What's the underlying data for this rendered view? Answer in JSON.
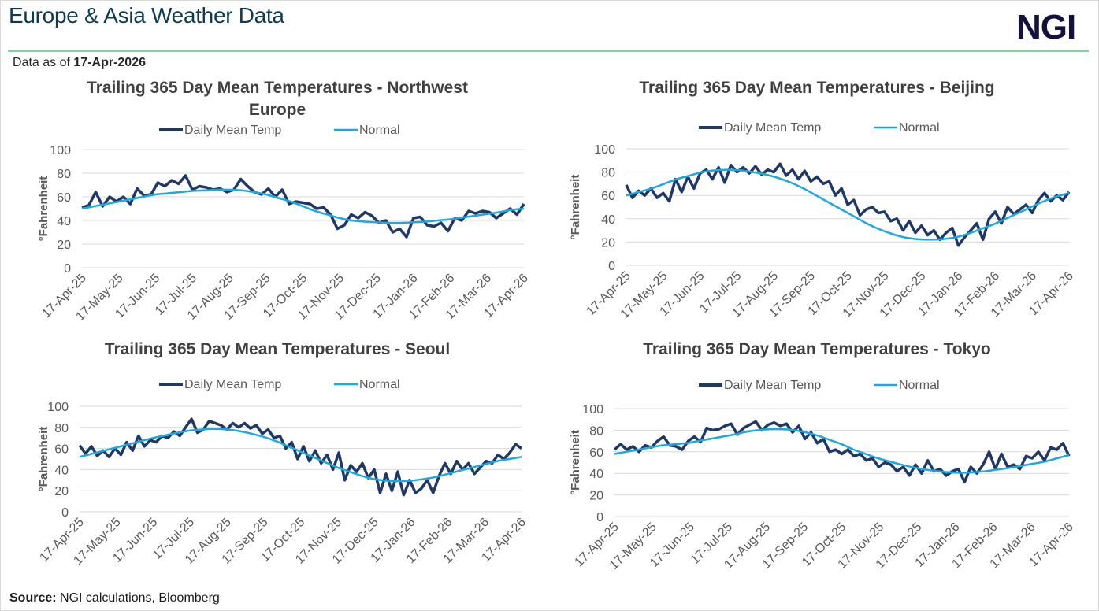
{
  "header": {
    "title": "Europe & Asia Weather Data",
    "logo": "NGI",
    "as_of_label": "Data as of",
    "as_of_date": "17-Apr-2026"
  },
  "footer": {
    "source_label": "Source:",
    "source_text": "NGI calculations, Bloomberg"
  },
  "colors": {
    "daily": "#1f3864",
    "normal": "#1fa8e0",
    "rule": "#7fd1a4",
    "title": "#0e3b4f",
    "logo": "#13123f"
  },
  "chart_data": [
    {
      "type": "line",
      "title_lines": [
        "Trailing 365 Day Mean Temperatures - Northwest",
        "Europe"
      ],
      "ylabel": "°Fahrenheit",
      "ylim": [
        0,
        100
      ],
      "yticks": [
        "0",
        "20",
        "40",
        "60",
        "80",
        "100"
      ],
      "xticks": [
        "17-Apr-25",
        "17-May-25",
        "17-Jun-25",
        "17-Jul-25",
        "17-Aug-25",
        "17-Sep-25",
        "17-Oct-25",
        "17-Nov-25",
        "17-Dec-25",
        "17-Jan-26",
        "17-Feb-26",
        "17-Mar-26",
        "17-Apr-26"
      ],
      "legend": [
        "Daily Mean Temp",
        "Normal"
      ],
      "legend_position": "top-center",
      "grid": true,
      "series": [
        {
          "name": "Daily Mean Temp",
          "values": [
            51,
            53,
            64,
            52,
            60,
            56,
            60,
            54,
            67,
            61,
            62,
            72,
            69,
            74,
            71,
            78,
            66,
            69,
            68,
            66,
            67,
            64,
            66,
            75,
            69,
            64,
            62,
            67,
            60,
            66,
            54,
            56,
            55,
            54,
            50,
            51,
            45,
            33,
            36,
            45,
            42,
            47,
            44,
            38,
            40,
            30,
            33,
            26,
            42,
            43,
            36,
            35,
            38,
            31,
            42,
            40,
            48,
            46,
            48,
            47,
            42,
            46,
            50,
            45,
            54
          ]
        },
        {
          "name": "Normal",
          "values": [
            50,
            52,
            54,
            56,
            58,
            60,
            62,
            63,
            64,
            65,
            65.5,
            66,
            66,
            65.5,
            64,
            62,
            59,
            56,
            52,
            48,
            45,
            42,
            40,
            39,
            38.5,
            38,
            38,
            38.5,
            39,
            40,
            41,
            42.5,
            44,
            45.5,
            47,
            49,
            50
          ]
        }
      ]
    },
    {
      "type": "line",
      "title_lines": [
        "Trailing 365 Day Mean Temperatures - Beijing"
      ],
      "ylabel": "°Fahrenheit",
      "ylim": [
        0,
        100
      ],
      "yticks": [
        "0",
        "20",
        "40",
        "60",
        "80",
        "100"
      ],
      "xticks": [
        "17-Apr-25",
        "17-May-25",
        "17-Jun-25",
        "17-Jul-25",
        "17-Aug-25",
        "17-Sep-25",
        "17-Oct-25",
        "17-Nov-25",
        "17-Dec-25",
        "17-Jan-26",
        "17-Feb-26",
        "17-Mar-26",
        "17-Apr-26"
      ],
      "legend": [
        "Daily Mean Temp",
        "Normal"
      ],
      "legend_position": "top-center",
      "grid": true,
      "series": [
        {
          "name": "Daily Mean Temp",
          "values": [
            69,
            58,
            64,
            60,
            66,
            58,
            62,
            55,
            74,
            63,
            76,
            66,
            79,
            82,
            74,
            84,
            71,
            86,
            80,
            84,
            79,
            85,
            78,
            82,
            80,
            87,
            77,
            82,
            74,
            81,
            72,
            76,
            70,
            72,
            60,
            66,
            52,
            56,
            43,
            48,
            50,
            45,
            46,
            38,
            40,
            30,
            38,
            28,
            34,
            26,
            30,
            22,
            28,
            32,
            17,
            24,
            30,
            36,
            22,
            40,
            46,
            36,
            50,
            44,
            48,
            52,
            45,
            56,
            62,
            55,
            60,
            56,
            63
          ]
        },
        {
          "name": "Normal",
          "values": [
            60,
            63,
            66,
            70,
            74,
            77,
            80,
            81.5,
            82,
            81.5,
            80,
            78,
            75,
            71,
            66,
            60,
            54,
            48,
            42,
            36,
            31,
            27,
            24,
            22.5,
            22,
            22.5,
            24,
            27,
            31,
            35,
            40,
            45,
            50,
            55,
            59,
            62
          ]
        }
      ]
    },
    {
      "type": "line",
      "title_lines": [
        "Trailing 365 Day Mean Temperatures - Seoul"
      ],
      "ylabel": "°Fahrenheit",
      "ylim": [
        0,
        100
      ],
      "yticks": [
        "0",
        "20",
        "40",
        "60",
        "80",
        "100"
      ],
      "xticks": [
        "17-Apr-25",
        "17-May-25",
        "17-Jun-25",
        "17-Jul-25",
        "17-Aug-25",
        "17-Sep-25",
        "17-Oct-25",
        "17-Nov-25",
        "17-Dec-25",
        "17-Jan-26",
        "17-Feb-26",
        "17-Mar-26",
        "17-Apr-26"
      ],
      "legend": [
        "Daily Mean Temp",
        "Normal"
      ],
      "legend_position": "top-center",
      "grid": true,
      "series": [
        {
          "name": "Daily Mean Temp",
          "values": [
            63,
            55,
            62,
            53,
            58,
            52,
            60,
            54,
            66,
            58,
            72,
            62,
            68,
            66,
            72,
            70,
            76,
            72,
            80,
            88,
            75,
            78,
            86,
            84,
            82,
            78,
            84,
            80,
            84,
            79,
            82,
            74,
            78,
            70,
            72,
            60,
            66,
            50,
            62,
            48,
            58,
            46,
            54,
            40,
            56,
            30,
            44,
            38,
            46,
            32,
            40,
            18,
            36,
            20,
            38,
            16,
            30,
            18,
            22,
            30,
            18,
            34,
            46,
            36,
            48,
            40,
            46,
            36,
            42,
            48,
            46,
            54,
            50,
            56,
            64,
            60
          ]
        },
        {
          "name": "Normal",
          "values": [
            52,
            55,
            58,
            61,
            64,
            67,
            70,
            72.5,
            75,
            77,
            78,
            78.5,
            78,
            76.5,
            74,
            71,
            67,
            62,
            57,
            52,
            47,
            42,
            38,
            34,
            31,
            29.5,
            29,
            29.5,
            31,
            33,
            36,
            39,
            42,
            45,
            48,
            50,
            52
          ]
        }
      ]
    },
    {
      "type": "line",
      "title_lines": [
        "Trailing 365 Day Mean Temperatures - Tokyo"
      ],
      "ylabel": "°Fahrenheit",
      "ylim": [
        0,
        100
      ],
      "yticks": [
        "0",
        "20",
        "40",
        "60",
        "80",
        "100"
      ],
      "xticks": [
        "17-Apr-25",
        "17-May-25",
        "17-Jun-25",
        "17-Jul-25",
        "17-Aug-25",
        "17-Sep-25",
        "17-Oct-25",
        "17-Nov-25",
        "17-Dec-25",
        "17-Jan-26",
        "17-Feb-26",
        "17-Mar-26",
        "17-Apr-26"
      ],
      "legend": [
        "Daily Mean Temp",
        "Normal"
      ],
      "legend_position": "top-center",
      "grid": true,
      "series": [
        {
          "name": "Daily Mean Temp",
          "values": [
            62,
            67,
            62,
            65,
            60,
            66,
            64,
            70,
            74,
            66,
            65,
            62,
            70,
            74,
            69,
            82,
            80,
            81,
            84,
            86,
            76,
            82,
            85,
            88,
            80,
            85,
            87,
            84,
            86,
            78,
            84,
            72,
            78,
            68,
            72,
            60,
            62,
            58,
            62,
            56,
            58,
            52,
            54,
            46,
            50,
            48,
            42,
            46,
            38,
            48,
            40,
            52,
            42,
            44,
            38,
            42,
            44,
            32,
            46,
            40,
            48,
            60,
            44,
            58,
            46,
            48,
            44,
            56,
            54,
            60,
            52,
            64,
            62,
            68,
            56
          ]
        },
        {
          "name": "Normal",
          "values": [
            58,
            60,
            62,
            64,
            66,
            67,
            68,
            70,
            72,
            74,
            76,
            78.5,
            80,
            81,
            81,
            80,
            78,
            75,
            71,
            67,
            62,
            58,
            54,
            51,
            48,
            45.5,
            43.5,
            42,
            41,
            40.5,
            41,
            42,
            43.5,
            45,
            47,
            49,
            51,
            54,
            57
          ]
        }
      ]
    }
  ]
}
